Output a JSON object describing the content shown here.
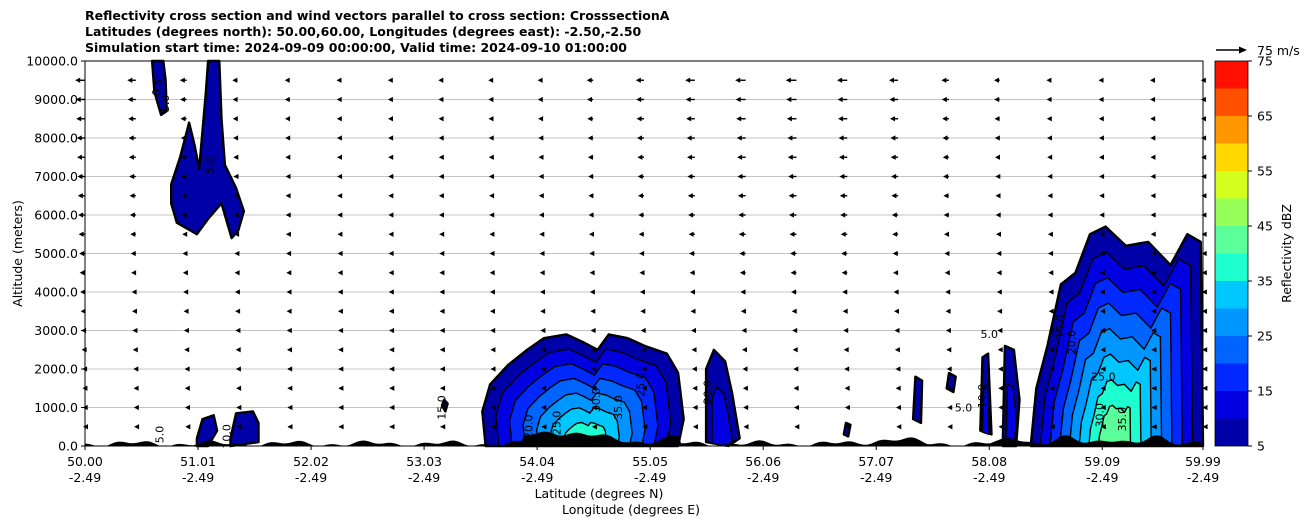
{
  "title_lines": [
    "Reflectivity cross section and wind vectors parallel to cross section: CrosssectionA",
    "Latitudes (degrees north): 50.00,60.00, Longitudes (degrees east): -2.50,-2.50",
    "Simulation start time: 2024-09-09 00:00:00, Valid time: 2024-09-10 01:00:00"
  ],
  "chart_data": {
    "type": "contourf",
    "ylabel": "Altitude (meters)",
    "xlabel_lines": [
      "Latitude (degrees N)",
      "Longitude (degrees E)"
    ],
    "ylim": [
      0,
      10000
    ],
    "y_ticks": [
      0,
      1000,
      2000,
      3000,
      4000,
      5000,
      6000,
      7000,
      8000,
      9000,
      10000
    ],
    "y_tick_labels": [
      "0.0",
      "1000.0",
      "2000.0",
      "3000.0",
      "4000.0",
      "5000.0",
      "6000.0",
      "7000.0",
      "8000.0",
      "9000.0",
      "10000.0"
    ],
    "xlim": [
      50.0,
      59.99
    ],
    "x_ticks": [
      {
        "lat": 50.0,
        "lat_label": "50.00",
        "lon_label": "-2.49"
      },
      {
        "lat": 51.01,
        "lat_label": "51.01",
        "lon_label": "-2.49"
      },
      {
        "lat": 52.02,
        "lat_label": "52.02",
        "lon_label": "-2.49"
      },
      {
        "lat": 53.03,
        "lat_label": "53.03",
        "lon_label": "-2.49"
      },
      {
        "lat": 54.04,
        "lat_label": "54.04",
        "lon_label": "-2.49"
      },
      {
        "lat": 55.05,
        "lat_label": "55.05",
        "lon_label": "-2.49"
      },
      {
        "lat": 56.06,
        "lat_label": "56.06",
        "lon_label": "-2.49"
      },
      {
        "lat": 57.07,
        "lat_label": "57.07",
        "lon_label": "-2.49"
      },
      {
        "lat": 58.08,
        "lat_label": "58.08",
        "lon_label": "-2.49"
      },
      {
        "lat": 59.09,
        "lat_label": "59.09",
        "lon_label": "-2.49"
      },
      {
        "lat": 59.99,
        "lat_label": "59.99",
        "lon_label": "-2.49"
      }
    ],
    "grid_horizontal": true,
    "colorbar": {
      "label": "Reflectivity dBZ",
      "levels": [
        5,
        10,
        15,
        20,
        25,
        30,
        35,
        40,
        45,
        50,
        55,
        60,
        65,
        70,
        75
      ],
      "tick_labels": [
        "5",
        "15",
        "25",
        "35",
        "45",
        "55",
        "65",
        "75"
      ],
      "colors": [
        "#0000a8",
        "#0000e0",
        "#0028ff",
        "#0064ff",
        "#0096ff",
        "#00c8ff",
        "#1effd0",
        "#5aff9a",
        "#96ff5a",
        "#d2ff1e",
        "#ffd800",
        "#ff9600",
        "#ff5000",
        "#ff1000",
        "#aa0000"
      ]
    },
    "quiver_key": {
      "label": "75 m/s",
      "speed": 75
    },
    "contour_labels": [
      "0.5",
      "5.0",
      "5.0",
      "5.0",
      "10.0",
      "15.0",
      "20.0",
      "25.0",
      "30.0",
      "35.0",
      "25.0",
      "20.0",
      "5.0",
      "5.0",
      "10.0",
      "15.0",
      "20.0",
      "25.0",
      "30.0",
      "35.0"
    ],
    "reflectivity_regions": [
      {
        "name": "upper-plume-a",
        "max_dbz": 5,
        "outline": [
          [
            50.6,
            10000
          ],
          [
            50.62,
            9200
          ],
          [
            50.68,
            8600
          ],
          [
            50.73,
            8700
          ],
          [
            50.72,
            9500
          ],
          [
            50.7,
            10000
          ]
        ]
      },
      {
        "name": "upper-plume-b",
        "max_dbz": 5,
        "outline": [
          [
            50.77,
            6800
          ],
          [
            50.85,
            7500
          ],
          [
            50.93,
            8400
          ],
          [
            50.98,
            7800
          ],
          [
            51.02,
            7200
          ],
          [
            51.08,
            9200
          ],
          [
            51.1,
            10000
          ],
          [
            51.2,
            10000
          ],
          [
            51.22,
            8500
          ],
          [
            51.25,
            7300
          ],
          [
            51.35,
            6700
          ],
          [
            51.42,
            6100
          ],
          [
            51.37,
            5600
          ],
          [
            51.31,
            5400
          ],
          [
            51.22,
            6300
          ],
          [
            51.1,
            5900
          ],
          [
            51.0,
            5500
          ],
          [
            50.82,
            5800
          ],
          [
            50.77,
            6300
          ]
        ]
      },
      {
        "name": "low-cell-a",
        "max_dbz": 5,
        "outline": [
          [
            51.0,
            200
          ],
          [
            51.05,
            700
          ],
          [
            51.15,
            800
          ],
          [
            51.18,
            400
          ],
          [
            51.1,
            0
          ],
          [
            51.0,
            0
          ]
        ]
      },
      {
        "name": "low-cell-b",
        "max_dbz": 5,
        "outline": [
          [
            51.3,
            200
          ],
          [
            51.35,
            850
          ],
          [
            51.5,
            900
          ],
          [
            51.55,
            600
          ],
          [
            51.55,
            100
          ],
          [
            51.3,
            0
          ]
        ]
      },
      {
        "name": "storm-54",
        "max_dbz": 35,
        "outline": [
          [
            53.58,
            0
          ],
          [
            53.55,
            900
          ],
          [
            53.62,
            1600
          ],
          [
            53.78,
            2100
          ],
          [
            53.95,
            2500
          ],
          [
            54.1,
            2800
          ],
          [
            54.3,
            2900
          ],
          [
            54.45,
            2700
          ],
          [
            54.58,
            2500
          ],
          [
            54.68,
            2900
          ],
          [
            54.85,
            2800
          ],
          [
            55.0,
            2600
          ],
          [
            55.2,
            2400
          ],
          [
            55.3,
            1900
          ],
          [
            55.35,
            700
          ],
          [
            55.3,
            0
          ]
        ]
      },
      {
        "name": "storm-55-5",
        "max_dbz": 10,
        "outline": [
          [
            55.55,
            2000
          ],
          [
            55.62,
            2500
          ],
          [
            55.72,
            2200
          ],
          [
            55.78,
            1400
          ],
          [
            55.85,
            200
          ],
          [
            55.75,
            0
          ],
          [
            55.55,
            100
          ]
        ]
      },
      {
        "name": "small-53",
        "max_dbz": 5,
        "outline": [
          [
            53.19,
            1050
          ],
          [
            53.21,
            1200
          ],
          [
            53.24,
            1100
          ],
          [
            53.22,
            900
          ]
        ]
      },
      {
        "name": "small-56-8",
        "max_dbz": 5,
        "outline": [
          [
            56.78,
            300
          ],
          [
            56.8,
            600
          ],
          [
            56.84,
            550
          ],
          [
            56.82,
            250
          ]
        ]
      },
      {
        "name": "small-57-4",
        "max_dbz": 5,
        "outline": [
          [
            57.4,
            700
          ],
          [
            57.42,
            1800
          ],
          [
            57.48,
            1700
          ],
          [
            57.47,
            600
          ]
        ]
      },
      {
        "name": "small-57-7",
        "max_dbz": 5,
        "outline": [
          [
            57.7,
            1500
          ],
          [
            57.72,
            1900
          ],
          [
            57.78,
            1800
          ],
          [
            57.76,
            1400
          ]
        ]
      },
      {
        "name": "cell-58",
        "max_dbz": 10,
        "outline": [
          [
            58.0,
            400
          ],
          [
            58.02,
            2300
          ],
          [
            58.07,
            2400
          ],
          [
            58.1,
            300
          ]
        ]
      },
      {
        "name": "cell-58-3",
        "max_dbz": 10,
        "outline": [
          [
            58.2,
            0
          ],
          [
            58.22,
            2600
          ],
          [
            58.3,
            2500
          ],
          [
            58.35,
            1200
          ],
          [
            58.32,
            0
          ]
        ]
      },
      {
        "name": "storm-59",
        "max_dbz": 40,
        "outline": [
          [
            58.45,
            0
          ],
          [
            58.5,
            1500
          ],
          [
            58.6,
            2600
          ],
          [
            58.72,
            4200
          ],
          [
            58.85,
            4500
          ],
          [
            58.98,
            5500
          ],
          [
            59.12,
            5700
          ],
          [
            59.3,
            5200
          ],
          [
            59.5,
            5300
          ],
          [
            59.7,
            4700
          ],
          [
            59.85,
            5500
          ],
          [
            59.97,
            5300
          ],
          [
            59.99,
            0
          ]
        ]
      }
    ],
    "wind_u_profile_mps": [
      {
        "alt": 500,
        "u": -4
      },
      {
        "alt": 2000,
        "u": -6
      },
      {
        "alt": 4000,
        "u": -10
      },
      {
        "alt": 6000,
        "u": -14
      },
      {
        "alt": 8000,
        "u": -17
      },
      {
        "alt": 9500,
        "u": -20
      }
    ]
  }
}
